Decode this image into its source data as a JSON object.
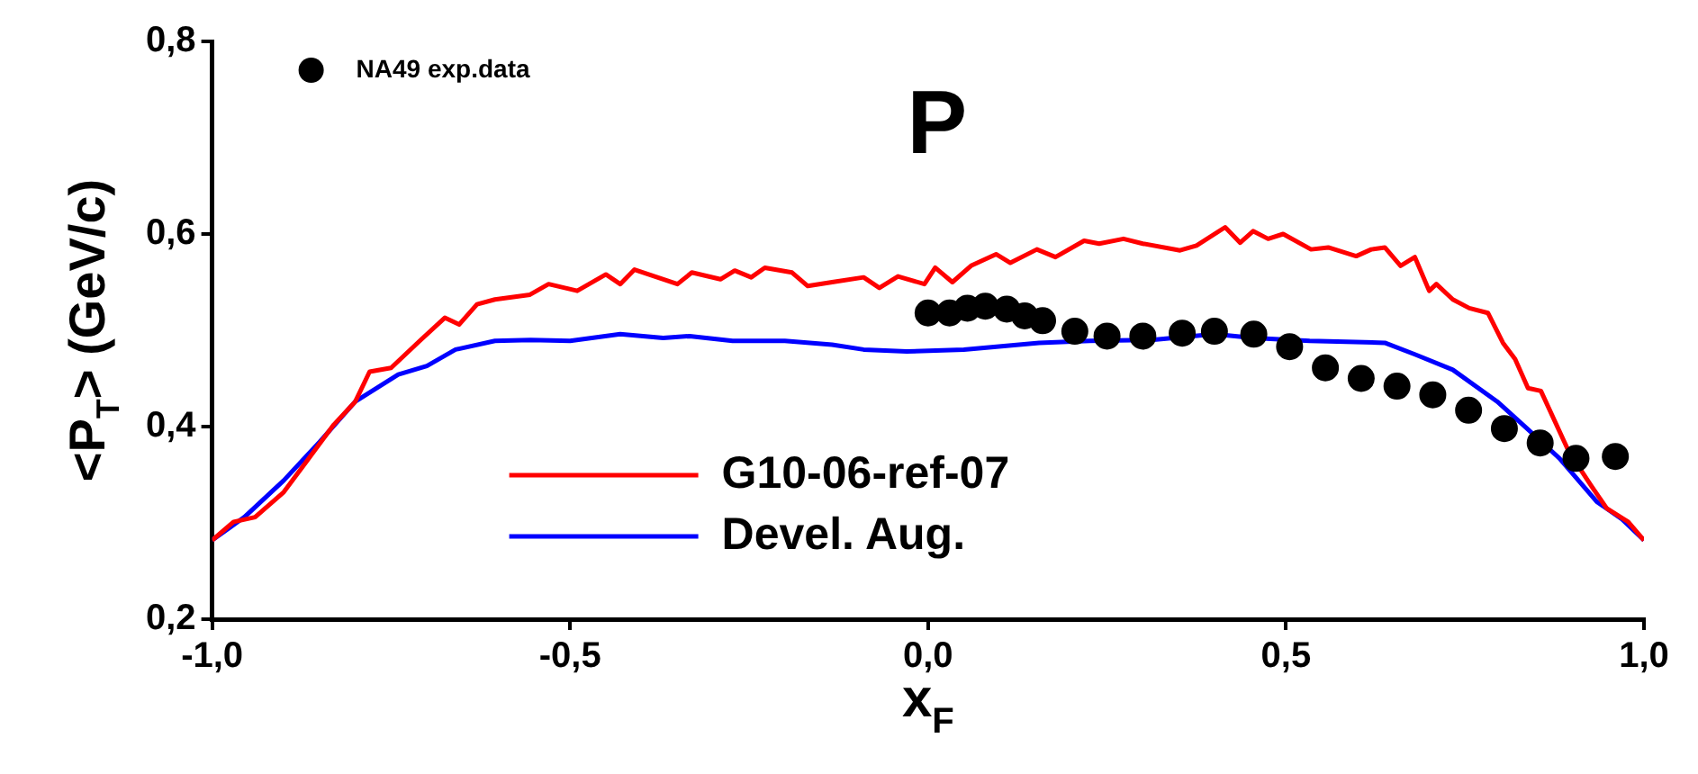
{
  "chart_data": {
    "type": "line",
    "title": "P",
    "xlabel": "x$_{F}$",
    "ylabel": "<P$_{T}$> (GeV/c)",
    "xlim": [
      -1.0,
      1.0
    ],
    "xticks": [
      {
        "value": -1.0,
        "label": "-1,0"
      },
      {
        "value": -0.5,
        "label": "-0,5"
      },
      {
        "value": 0.0,
        "label": "0,0"
      },
      {
        "value": 0.5,
        "label": "0,5"
      },
      {
        "value": 1.0,
        "label": "1,0"
      }
    ],
    "ylim": [
      0.2,
      0.8
    ],
    "yticks": [
      {
        "value": 0.2,
        "label": "0,2"
      },
      {
        "value": 0.4,
        "label": "0,4"
      },
      {
        "value": 0.6,
        "label": "0,6"
      },
      {
        "value": 0.8,
        "label": "0,8"
      }
    ],
    "grid": false,
    "legend": "top left",
    "series": [
      {
        "name": "NA49 exp.data",
        "type": "scatter",
        "marker": "circle",
        "color": "#000000",
        "x": [
          0.0,
          0.03,
          0.055,
          0.08,
          0.11,
          0.135,
          0.16,
          0.205,
          0.25,
          0.3,
          0.355,
          0.4,
          0.455,
          0.505,
          0.555,
          0.605,
          0.655,
          0.705,
          0.755,
          0.805,
          0.855,
          0.905,
          0.96
        ],
        "values": [
          0.518,
          0.518,
          0.523,
          0.525,
          0.522,
          0.515,
          0.51,
          0.499,
          0.494,
          0.494,
          0.497,
          0.499,
          0.496,
          0.483,
          0.461,
          0.45,
          0.442,
          0.433,
          0.417,
          0.398,
          0.383,
          0.367,
          0.369
        ]
      },
      {
        "name": "G10-06-ref-07",
        "marker": "none",
        "color": "#ff0000",
        "x": [
          -1.0,
          -0.97,
          -0.94,
          -0.9,
          -0.87,
          -0.83,
          -0.8,
          -0.78,
          -0.75,
          -0.71,
          -0.675,
          -0.655,
          -0.63,
          -0.605,
          -0.556,
          -0.53,
          -0.49,
          -0.45,
          -0.43,
          -0.41,
          -0.35,
          -0.33,
          -0.29,
          -0.27,
          -0.247,
          -0.228,
          -0.19,
          -0.168,
          -0.134,
          -0.09,
          -0.068,
          -0.042,
          -0.005,
          0.01,
          0.034,
          0.06,
          0.095,
          0.115,
          0.152,
          0.178,
          0.218,
          0.239,
          0.273,
          0.3,
          0.352,
          0.375,
          0.415,
          0.436,
          0.454,
          0.475,
          0.496,
          0.535,
          0.559,
          0.598,
          0.619,
          0.638,
          0.66,
          0.68,
          0.7,
          0.71,
          0.733,
          0.756,
          0.782,
          0.803,
          0.82,
          0.838,
          0.856,
          0.895,
          0.926,
          0.948,
          0.978,
          1.0
        ],
        "values": [
          0.282,
          0.301,
          0.306,
          0.332,
          0.362,
          0.402,
          0.426,
          0.457,
          0.461,
          0.489,
          0.513,
          0.506,
          0.527,
          0.532,
          0.537,
          0.548,
          0.541,
          0.558,
          0.548,
          0.563,
          0.548,
          0.56,
          0.553,
          0.562,
          0.555,
          0.565,
          0.56,
          0.546,
          0.55,
          0.555,
          0.544,
          0.556,
          0.548,
          0.565,
          0.55,
          0.567,
          0.579,
          0.57,
          0.584,
          0.576,
          0.593,
          0.59,
          0.595,
          0.59,
          0.583,
          0.588,
          0.607,
          0.591,
          0.603,
          0.595,
          0.6,
          0.584,
          0.586,
          0.577,
          0.584,
          0.586,
          0.567,
          0.576,
          0.541,
          0.548,
          0.532,
          0.523,
          0.518,
          0.487,
          0.47,
          0.44,
          0.437,
          0.374,
          0.339,
          0.315,
          0.301,
          0.282
        ]
      },
      {
        "name": "Devel. Aug.",
        "marker": "none",
        "color": "#0000ff",
        "x": [
          -1.0,
          -0.955,
          -0.9,
          -0.85,
          -0.8,
          -0.74,
          -0.7,
          -0.66,
          -0.605,
          -0.555,
          -0.5,
          -0.43,
          -0.37,
          -0.333,
          -0.273,
          -0.2,
          -0.134,
          -0.09,
          -0.03,
          0.05,
          0.155,
          0.226,
          0.312,
          0.4,
          0.454,
          0.533,
          0.638,
          0.68,
          0.733,
          0.795,
          0.838,
          0.882,
          0.934,
          0.969,
          1.0
        ],
        "values": [
          0.282,
          0.306,
          0.344,
          0.384,
          0.426,
          0.454,
          0.463,
          0.48,
          0.489,
          0.49,
          0.489,
          0.496,
          0.492,
          0.494,
          0.489,
          0.489,
          0.485,
          0.48,
          0.478,
          0.48,
          0.487,
          0.489,
          0.49,
          0.496,
          0.492,
          0.489,
          0.487,
          0.475,
          0.459,
          0.426,
          0.397,
          0.367,
          0.322,
          0.304,
          0.282
        ]
      }
    ]
  }
}
